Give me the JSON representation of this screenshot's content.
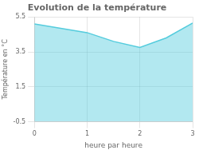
{
  "chart_data": {
    "type": "area",
    "title": "Evolution de la température",
    "x_label": "heure par heure",
    "y_label": "Température en °C",
    "x": [
      0,
      0.5,
      1,
      1.5,
      2,
      2.5,
      3
    ],
    "values": [
      5.1,
      4.85,
      4.6,
      4.1,
      3.75,
      4.3,
      5.15
    ],
    "color": "#55ccdd",
    "xlim": [
      0,
      3
    ],
    "ylim": [
      -0.5,
      5.5
    ],
    "xticks": [
      0,
      1,
      2,
      3
    ],
    "yticks": [
      -0.5,
      1.5,
      3.5,
      5.5
    ],
    "grid": true
  }
}
